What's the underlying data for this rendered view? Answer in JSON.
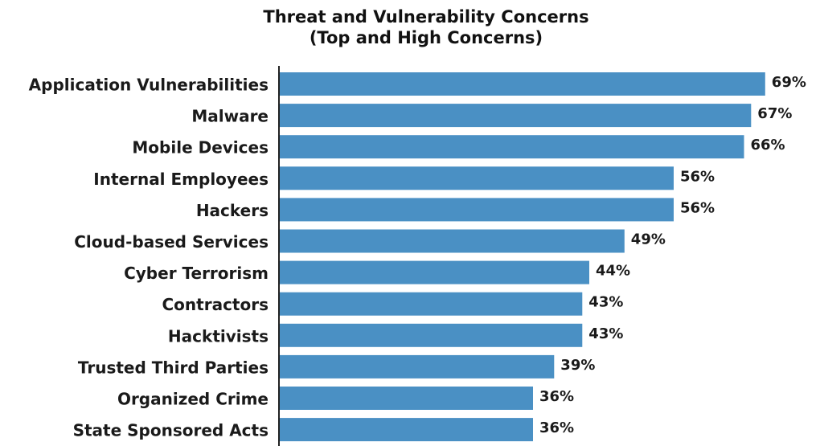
{
  "chart_data": {
    "type": "bar",
    "orientation": "horizontal",
    "title": "Threat and Vulnerability Concerns",
    "subtitle": "(Top and High Concerns)",
    "categories": [
      "Application Vulnerabilities",
      "Malware",
      "Mobile Devices",
      "Internal Employees",
      "Hackers",
      "Cloud-based Services",
      "Cyber Terrorism",
      "Contractors",
      "Hacktivists",
      "Trusted Third Parties",
      "Organized Crime",
      "State Sponsored Acts"
    ],
    "values": [
      69,
      67,
      66,
      56,
      56,
      49,
      44,
      43,
      43,
      39,
      36,
      36
    ],
    "value_labels": [
      "69%",
      "67%",
      "66%",
      "56%",
      "56%",
      "49%",
      "44%",
      "43%",
      "43%",
      "39%",
      "36%",
      "36%"
    ],
    "value_unit": "%",
    "xlim": [
      0,
      70
    ],
    "grid": false,
    "legend": "none",
    "bar_color": "#4a90c4"
  }
}
